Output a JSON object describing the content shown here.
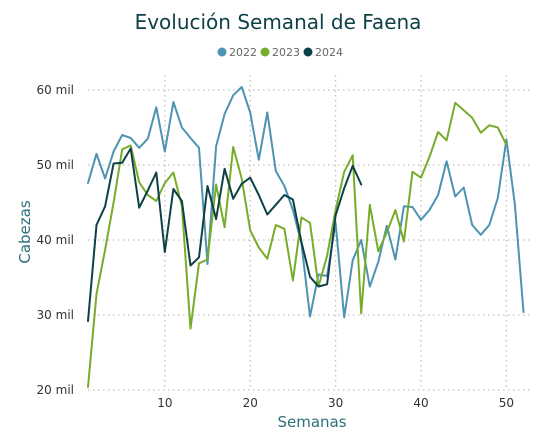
{
  "chart_data": {
    "type": "line",
    "title": "Evolución Semanal de Faena",
    "xlabel": "Semanas",
    "ylabel": "Cabezas",
    "xlim": [
      1,
      53
    ],
    "ylim": [
      20000,
      62000
    ],
    "x_ticks": [
      10,
      20,
      30,
      40,
      50
    ],
    "y_ticks": [
      {
        "value": 20000,
        "label": "20 mil"
      },
      {
        "value": 30000,
        "label": "30 mil"
      },
      {
        "value": 40000,
        "label": "40 mil"
      },
      {
        "value": 50000,
        "label": "50 mil"
      },
      {
        "value": 60000,
        "label": "60 mil"
      }
    ],
    "grid": "dotted",
    "legend_position": "top-center",
    "series": [
      {
        "name": "2022",
        "color": "#4e93b1",
        "x": [
          1,
          2,
          3,
          4,
          5,
          6,
          7,
          8,
          9,
          10,
          11,
          12,
          13,
          14,
          15,
          16,
          17,
          18,
          19,
          20,
          21,
          22,
          23,
          24,
          25,
          26,
          27,
          28,
          29,
          30,
          31,
          32,
          33,
          34,
          35,
          36,
          37,
          38,
          39,
          40,
          41,
          42,
          43,
          44,
          45,
          46,
          47,
          48,
          49,
          50,
          51,
          52
        ],
        "values": [
          47600,
          51500,
          48200,
          51800,
          54000,
          53600,
          52300,
          53500,
          57700,
          51800,
          58400,
          55000,
          53600,
          52300,
          36800,
          52500,
          56800,
          59300,
          60400,
          57000,
          50700,
          57000,
          49200,
          47200,
          44000,
          39500,
          29800,
          35400,
          35200,
          42300,
          29700,
          37300,
          40000,
          33800,
          37100,
          41900,
          37400,
          44500,
          44400,
          42700,
          44000,
          46000,
          50500,
          45800,
          47000,
          42000,
          40700,
          42000,
          45600,
          53400,
          44700,
          30400
        ]
      },
      {
        "name": "2023",
        "color": "#77ac2b",
        "x": [
          1,
          2,
          3,
          4,
          5,
          6,
          7,
          8,
          9,
          10,
          11,
          12,
          13,
          14,
          15,
          16,
          17,
          18,
          19,
          20,
          21,
          22,
          23,
          24,
          25,
          26,
          27,
          28,
          29,
          30,
          31,
          32,
          33,
          34,
          35,
          36,
          37,
          38,
          39,
          40,
          41,
          42,
          43,
          44,
          45,
          46,
          47,
          48,
          49,
          50,
          51,
          52
        ],
        "values": [
          20400,
          32800,
          38700,
          45000,
          52100,
          52600,
          47700,
          46000,
          45200,
          47600,
          49000,
          44500,
          28200,
          36900,
          37400,
          47400,
          41700,
          52400,
          48200,
          41300,
          39000,
          37500,
          42000,
          41500,
          34600,
          43000,
          42300,
          33800,
          37900,
          44000,
          49100,
          51300,
          30200,
          44700,
          38500,
          41000,
          44000,
          39800,
          49100,
          48300,
          51100,
          54400,
          53300,
          58300,
          57300,
          56300,
          54300,
          55300,
          55000,
          52700,
          null,
          null
        ]
      },
      {
        "name": "2024",
        "color": "#0e4147",
        "x": [
          1,
          2,
          3,
          4,
          5,
          6,
          7,
          8,
          9,
          10,
          11,
          12,
          13,
          14,
          15,
          16,
          17,
          18,
          19,
          20,
          21,
          22,
          23,
          24,
          25,
          26,
          27,
          28,
          29,
          30,
          31,
          32,
          33
        ],
        "values": [
          29200,
          42000,
          44500,
          50200,
          50300,
          52200,
          44300,
          46600,
          49000,
          38400,
          46800,
          45200,
          36600,
          37700,
          47200,
          42800,
          49500,
          45500,
          47500,
          48300,
          46000,
          43400,
          44700,
          46000,
          45400,
          39700,
          35100,
          33800,
          34100,
          43300,
          46900,
          49900,
          47400
        ]
      }
    ]
  }
}
